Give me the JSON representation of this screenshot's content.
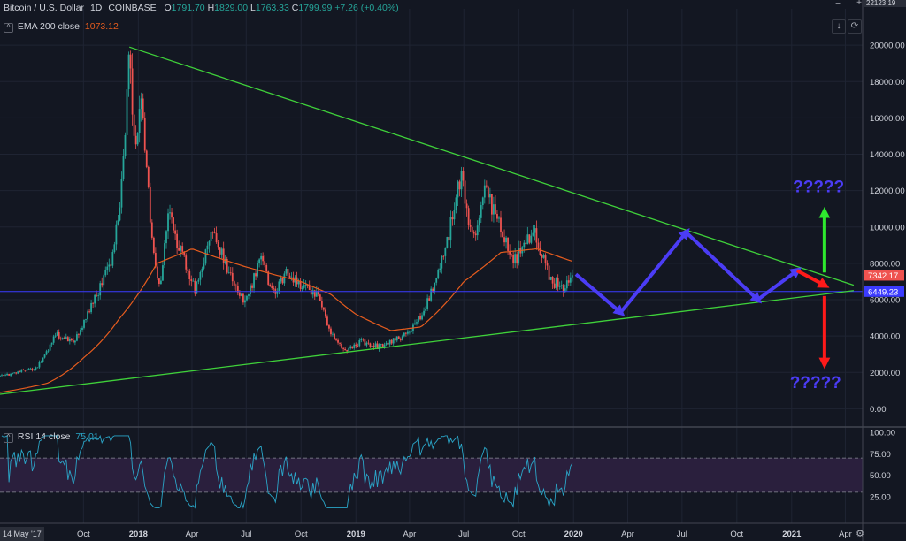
{
  "header": {
    "symbol": "Bitcoin / U.S. Dollar",
    "interval": "1D",
    "exchange": "COINBASE",
    "open_label": "O",
    "open": "1791.70",
    "high_label": "H",
    "high": "1829.00",
    "low_label": "L",
    "low": "1763.33",
    "close_label": "C",
    "close": "1799.99",
    "change": "+7.26 (+0.40%)",
    "ema_label": "EMA 200 close",
    "ema_value": "1073.12",
    "rsi_label": "RSI 14 close",
    "rsi_value": "75.01",
    "top_price_badge": "22123.19"
  },
  "colors": {
    "background": "#131722",
    "up": "#26a69a",
    "down": "#ef5350",
    "ema": "#e65c1e",
    "trendline": "#3fd13a",
    "support": "#3b3bff",
    "projection": "#4b3cf5",
    "bear_arrow": "#ff1a1a",
    "bull_arrow": "#2ee82e",
    "question": "#4b3cf5",
    "rsi_line": "#2aa6c8",
    "rsi_band": "#2a1f3d"
  },
  "chart_data": [
    {
      "type": "candlestick",
      "title": "Bitcoin / U.S. Dollar 1D COINBASE",
      "y_ticks": [
        "0.00",
        "2000.00",
        "4000.00",
        "6000.00",
        "8000.00",
        "10000.00",
        "12000.00",
        "14000.00",
        "16000.00",
        "18000.00",
        "20000.00"
      ],
      "x_ticks": [
        "Oct",
        "2018",
        "Apr",
        "Jul",
        "Oct",
        "2019",
        "Apr",
        "Jul",
        "Oct",
        "2020",
        "Apr",
        "Jul",
        "Oct",
        "2021",
        "Apr"
      ],
      "x_start_label": "14 May '17",
      "ylim": [
        -1000,
        22000
      ],
      "x_range": [
        "2017-05-14",
        "2021-04-30"
      ],
      "price_anchors": [
        [
          "2017-05-14",
          1800
        ],
        [
          "2017-07-15",
          2300
        ],
        [
          "2017-08-15",
          4100
        ],
        [
          "2017-09-15",
          3700
        ],
        [
          "2017-10-15",
          5700
        ],
        [
          "2017-11-15",
          8000
        ],
        [
          "2017-12-01",
          11000
        ],
        [
          "2017-12-17",
          19500
        ],
        [
          "2017-12-28",
          14000
        ],
        [
          "2018-01-06",
          17000
        ],
        [
          "2018-02-06",
          6500
        ],
        [
          "2018-02-20",
          11000
        ],
        [
          "2018-04-06",
          6600
        ],
        [
          "2018-05-05",
          9800
        ],
        [
          "2018-06-28",
          5900
        ],
        [
          "2018-07-25",
          8300
        ],
        [
          "2018-08-15",
          6300
        ],
        [
          "2018-09-05",
          7400
        ],
        [
          "2018-10-30",
          6300
        ],
        [
          "2018-11-25",
          3800
        ],
        [
          "2018-12-15",
          3200
        ],
        [
          "2019-01-10",
          3700
        ],
        [
          "2019-02-08",
          3400
        ],
        [
          "2019-03-30",
          4100
        ],
        [
          "2019-04-25",
          5500
        ],
        [
          "2019-05-30",
          8700
        ],
        [
          "2019-06-26",
          13000
        ],
        [
          "2019-07-16",
          9400
        ],
        [
          "2019-08-06",
          12000
        ],
        [
          "2019-09-25",
          8200
        ],
        [
          "2019-10-26",
          9800
        ],
        [
          "2019-11-25",
          7000
        ],
        [
          "2019-12-18",
          6700
        ],
        [
          "2019-12-31",
          7200
        ]
      ],
      "ema_anchors": [
        [
          "2017-05-14",
          900
        ],
        [
          "2017-08-01",
          1400
        ],
        [
          "2017-10-01",
          2800
        ],
        [
          "2017-12-01",
          5000
        ],
        [
          "2018-02-01",
          8000
        ],
        [
          "2018-04-01",
          8800
        ],
        [
          "2018-07-01",
          7800
        ],
        [
          "2018-10-01",
          7000
        ],
        [
          "2018-11-20",
          6300
        ],
        [
          "2019-01-01",
          5200
        ],
        [
          "2019-03-01",
          4300
        ],
        [
          "2019-04-20",
          4500
        ],
        [
          "2019-07-01",
          7000
        ],
        [
          "2019-09-01",
          8600
        ],
        [
          "2019-11-01",
          8800
        ],
        [
          "2019-12-31",
          8100
        ]
      ],
      "horizontal_level": 6449.23,
      "current_price": 7342.17,
      "price_badges": [
        "7342.17",
        "6449.23"
      ],
      "trendlines": [
        {
          "name": "resistance",
          "from": [
            "2017-12-17",
            19900
          ],
          "to": [
            "2021-04-15",
            6800
          ]
        },
        {
          "name": "support",
          "from": [
            "2017-05-14",
            800
          ],
          "to": [
            "2021-04-15",
            6500
          ]
        }
      ],
      "projection_path": [
        [
          "2020-01-05",
          7400
        ],
        [
          "2020-03-20",
          5300
        ],
        [
          "2020-07-08",
          9700
        ],
        [
          "2020-11-05",
          6000
        ],
        [
          "2021-01-10",
          7600
        ]
      ],
      "bear_arrow": {
        "from": [
          "2021-01-10",
          7600
        ],
        "to": [
          "2021-02-25",
          6800
        ]
      },
      "bull_arrow": {
        "from": [
          "2021-02-25",
          7500
        ],
        "to": [
          "2021-02-25",
          10800
        ]
      },
      "down_arrow": {
        "from": [
          "2021-02-25",
          6200
        ],
        "to": [
          "2021-02-25",
          2500
        ]
      },
      "annotations": [
        "?????",
        "?????"
      ]
    },
    {
      "type": "line",
      "title": "RSI 14 close",
      "y_ticks": [
        "25.00",
        "50.00",
        "75.00",
        "100.00"
      ],
      "ylim": [
        0,
        100
      ],
      "bands": [
        30,
        70
      ],
      "x_range": [
        "2017-05-14",
        "2019-12-31"
      ]
    }
  ]
}
